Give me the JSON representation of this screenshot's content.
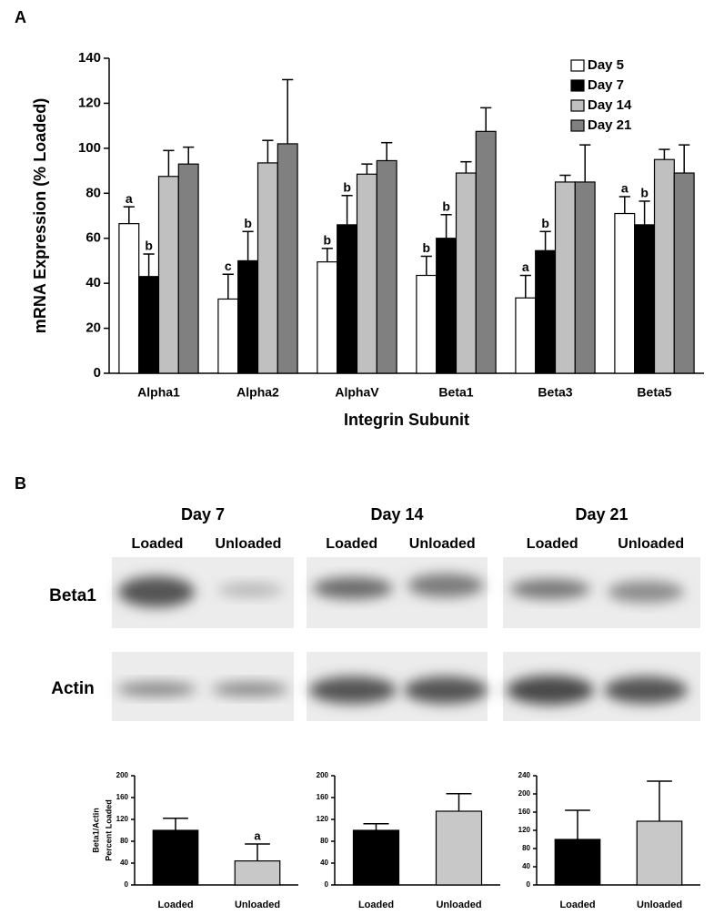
{
  "panel_labels": [
    "A",
    "B"
  ],
  "chart_data": [
    {
      "type": "bar",
      "ylabel": [
        "mRNA Expression (% Loaded)"
      ],
      "xlabel": "Integrin Subunit",
      "categories": [
        "Alpha1",
        "Alpha2",
        "AlphaV",
        "Beta1",
        "Beta3",
        "Beta5"
      ],
      "series": [
        {
          "name": "Day 5",
          "color": "#ffffff",
          "values": [
            66.5,
            33,
            49.5,
            43.5,
            33.5,
            71
          ],
          "errors": [
            7.5,
            11,
            6,
            8.5,
            10,
            7.5
          ],
          "annotations": [
            "a",
            "c",
            "b",
            "b",
            "a",
            "a"
          ]
        },
        {
          "name": "Day 7",
          "color": "#000000",
          "values": [
            43,
            50,
            66,
            60,
            54.5,
            66
          ],
          "errors": [
            10,
            13,
            13,
            10.5,
            8.5,
            10.5
          ],
          "annotations": [
            "b",
            "b",
            "b",
            "b",
            "b",
            "b"
          ]
        },
        {
          "name": "Day 14",
          "color": "#c0c0c0",
          "values": [
            87.5,
            93.5,
            88.5,
            89,
            85,
            95
          ],
          "errors": [
            11.5,
            10,
            4.5,
            5,
            3,
            4.5
          ]
        },
        {
          "name": "Day 21",
          "color": "#808080",
          "values": [
            93,
            102,
            94.5,
            107.5,
            85,
            89
          ],
          "errors": [
            7.5,
            28.5,
            8,
            10.5,
            16.5,
            12.5
          ]
        }
      ],
      "ylim": [
        0,
        140
      ],
      "yticks": [
        0,
        20,
        40,
        60,
        80,
        100,
        120,
        140
      ],
      "legend": "upper right",
      "grid": false
    },
    {
      "type": "bar",
      "ylabel": [
        "Beta1/Actin",
        "Percent Loaded"
      ],
      "categories": [
        "Loaded",
        "Unloaded"
      ],
      "values": [
        100,
        44
      ],
      "errors": [
        22,
        31
      ],
      "colors": [
        "#000000",
        "#c8c8c8"
      ],
      "annotations": [
        null,
        "a"
      ],
      "ylim": [
        0,
        200
      ],
      "yticks": [
        0,
        40,
        80,
        120,
        160,
        200
      ],
      "grid": false
    },
    {
      "type": "bar",
      "categories": [
        "Loaded",
        "Unloaded"
      ],
      "values": [
        100,
        135
      ],
      "errors": [
        12,
        32
      ],
      "colors": [
        "#000000",
        "#c8c8c8"
      ],
      "ylim": [
        0,
        200
      ],
      "yticks": [
        0,
        40,
        80,
        120,
        160,
        200
      ],
      "grid": false
    },
    {
      "type": "bar",
      "categories": [
        "Loaded",
        "Unloaded"
      ],
      "values": [
        100,
        140
      ],
      "errors": [
        64,
        88
      ],
      "colors": [
        "#000000",
        "#c8c8c8"
      ],
      "ylim": [
        0,
        240
      ],
      "yticks": [
        0,
        40,
        80,
        120,
        160,
        200,
        240
      ],
      "grid": false
    }
  ],
  "blot": {
    "groups": [
      {
        "title": "Day 7",
        "lanes": [
          "Loaded",
          "Unloaded"
        ]
      },
      {
        "title": "Day 14",
        "lanes": [
          "Loaded",
          "Unloaded"
        ]
      },
      {
        "title": "Day 21",
        "lanes": [
          "Loaded",
          "Unloaded"
        ]
      }
    ],
    "rows": [
      "Beta1",
      "Actin"
    ]
  }
}
